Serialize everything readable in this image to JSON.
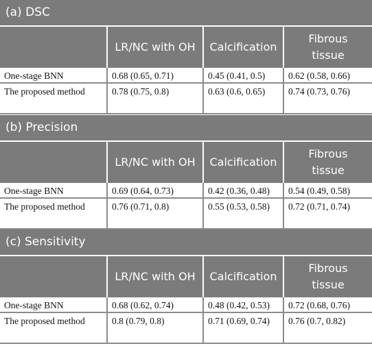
{
  "sections": [
    {
      "title": "(a) DSC",
      "columns": [
        "LR/NC with OH",
        "Calcification",
        "Fibrous tissue"
      ],
      "rows": [
        [
          "One-stage BNN",
          "0.68 (0.65, 0.71)",
          "0.45 (0.41, 0.5)",
          "0.62 (0.58, 0.66)"
        ],
        [
          "The proposed method",
          "0.78 (0.75, 0.8)",
          "0.63 (0.6, 0.65)",
          "0.74 (0.73, 0.76)"
        ]
      ]
    },
    {
      "title": "(b) Precision",
      "columns": [
        "LR/NC with OH",
        "Calcification",
        "Fibrous tissue"
      ],
      "rows": [
        [
          "One-stage BNN",
          "0.69 (0.64, 0.73)",
          "0.42 (0.36, 0.48)",
          "0.54 (0.49, 0.58)"
        ],
        [
          "The proposed method",
          "0.76 (0.71, 0.8)",
          "0.55 (0.53, 0.58)",
          "0.72 (0.71, 0.74)"
        ]
      ]
    },
    {
      "title": "(c) Sensitivity",
      "columns": [
        "LR/NC with OH",
        "Calcification",
        "Fibrous tissue"
      ],
      "rows": [
        [
          "One-stage BNN",
          "0.68 (0.62, 0.74)",
          "0.48 (0.42, 0.53)",
          "0.72 (0.68, 0.76)"
        ],
        [
          "The proposed method",
          "0.8 (0.79, 0.8)",
          "0.71 (0.69, 0.74)",
          "0.76 (0.7, 0.82)"
        ]
      ]
    }
  ]
}
